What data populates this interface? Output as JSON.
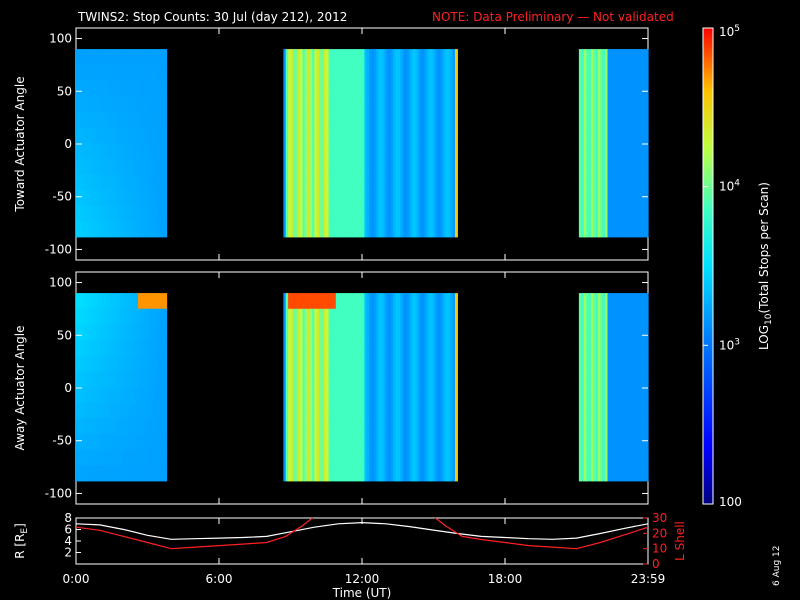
{
  "title": "TWINS2: Stop Counts: 30 Jul (day 212), 2012",
  "note": "NOTE: Data Preliminary — Not validated",
  "date_stamp": "6 Aug 12",
  "colors": {
    "note": "#ff2020",
    "r_line": "#ffffff",
    "lshell_line": "#ff2020"
  },
  "chart_data": [
    {
      "type": "heatmap",
      "ylabel": "Toward Actuator Angle",
      "ylim": [
        -110,
        110
      ],
      "yticks": [
        100,
        50,
        0,
        -50,
        -100
      ],
      "data_extent": {
        "x_hours": [
          0,
          24
        ],
        "y": [
          -88,
          90
        ]
      },
      "data_gaps_hours": [
        [
          3.8,
          8.7
        ],
        [
          16.0,
          21.1
        ]
      ],
      "value_range": [
        100,
        100000
      ]
    },
    {
      "type": "heatmap",
      "ylabel": "Away Actuator Angle",
      "ylim": [
        -110,
        110
      ],
      "yticks": [
        100,
        50,
        0,
        -50,
        -100
      ],
      "data_extent": {
        "x_hours": [
          0,
          24
        ],
        "y": [
          -88,
          90
        ]
      },
      "data_gaps_hours": [
        [
          3.8,
          8.7
        ],
        [
          16.0,
          21.1
        ]
      ],
      "value_range": [
        100,
        100000
      ]
    },
    {
      "type": "line",
      "xlabel": "Time (UT)",
      "xticks": [
        "0:00",
        "6:00",
        "12:00",
        "18:00",
        "23:59"
      ],
      "xlim_hours": [
        0,
        24
      ],
      "left_axis": {
        "label": "R [R",
        "label_sub": "E",
        "label_end": "]",
        "ticks": [
          8,
          6,
          4,
          2
        ],
        "range": [
          0,
          8
        ]
      },
      "right_axis": {
        "label": "L Shell",
        "ticks": [
          30,
          20,
          10,
          0
        ],
        "range": [
          0,
          30
        ]
      },
      "series": [
        {
          "axis": "left",
          "x": [
            0,
            1,
            2,
            3,
            4,
            5,
            6,
            7,
            8,
            9,
            10,
            11,
            12,
            13,
            14,
            15,
            16,
            17,
            18,
            19,
            20,
            21,
            22,
            23,
            24
          ],
          "y": [
            7.0,
            6.8,
            6.0,
            5.0,
            4.3,
            4.4,
            4.5,
            4.6,
            4.8,
            5.6,
            6.4,
            7.0,
            7.2,
            7.0,
            6.5,
            5.9,
            5.3,
            4.8,
            4.6,
            4.4,
            4.3,
            4.5,
            5.3,
            6.2,
            7.0
          ]
        },
        {
          "axis": "right",
          "x": [
            0,
            1,
            2,
            3,
            4,
            5,
            6,
            7,
            8,
            8.8,
            9.5,
            10.0,
            15.0,
            15.5,
            16.2,
            17,
            18,
            19,
            20,
            21,
            22,
            23,
            24
          ],
          "y": [
            24,
            22,
            18,
            14,
            10,
            11,
            12,
            13,
            14,
            18,
            25,
            31,
            31,
            25,
            18,
            16,
            14,
            12,
            11,
            10,
            14,
            19,
            24
          ]
        }
      ]
    },
    {
      "type": "heatmap",
      "role": "colorbar",
      "label": "LOG",
      "label_sub": "10",
      "label_rest": "(Total Stops per Scan)",
      "scale": "log",
      "range": [
        100,
        100000
      ],
      "tick_labels": [
        {
          "base": "10",
          "exp": "5",
          "value": 100000
        },
        {
          "base": "10",
          "exp": "4",
          "value": 10000
        },
        {
          "base": "10",
          "exp": "3",
          "value": 1000
        },
        {
          "base": "100",
          "exp": "",
          "value": 100
        }
      ]
    }
  ]
}
